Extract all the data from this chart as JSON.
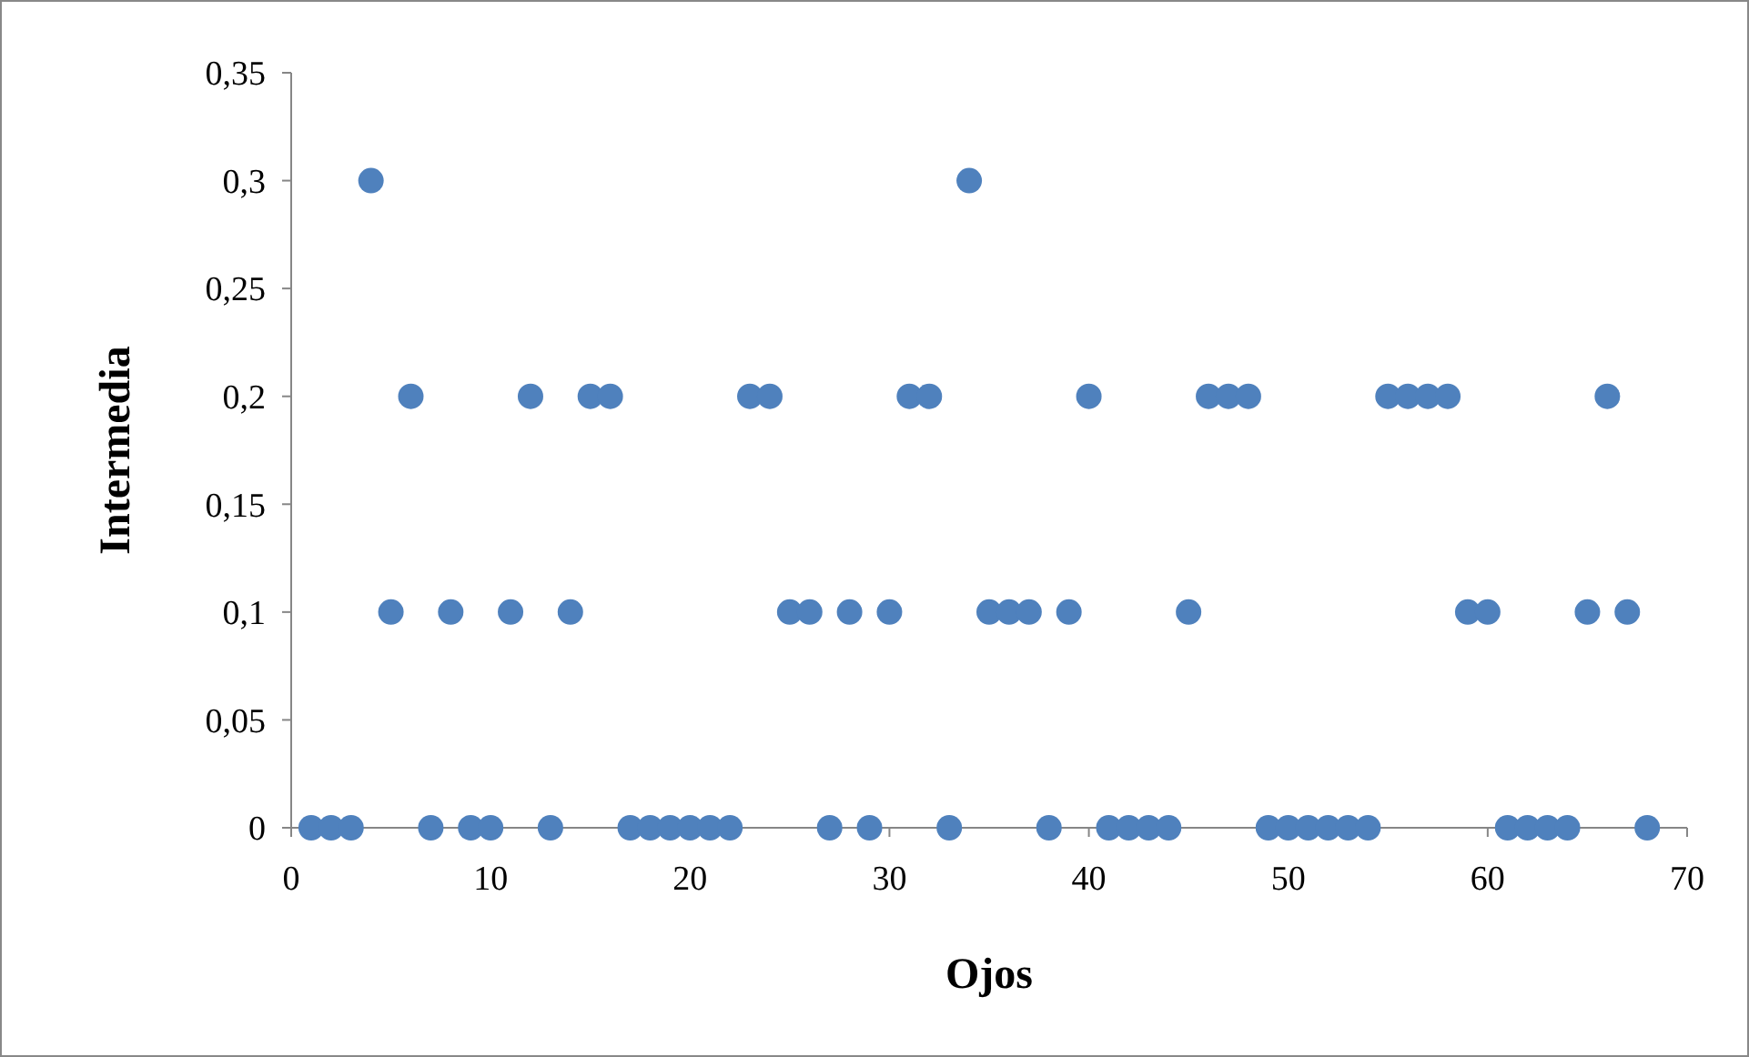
{
  "chart_data": {
    "type": "scatter",
    "xlabel": "Ojos",
    "ylabel": "Intermedia",
    "marker": "circle",
    "x": [
      1,
      2,
      3,
      4,
      5,
      6,
      7,
      8,
      9,
      10,
      11,
      12,
      13,
      14,
      15,
      16,
      17,
      18,
      19,
      20,
      21,
      22,
      23,
      24,
      25,
      26,
      27,
      28,
      29,
      30,
      31,
      32,
      33,
      34,
      35,
      36,
      37,
      38,
      39,
      40,
      41,
      42,
      43,
      44,
      45,
      46,
      47,
      48,
      49,
      50,
      51,
      52,
      53,
      54,
      55,
      56,
      57,
      58,
      59,
      60,
      61,
      62,
      63,
      64,
      65,
      66,
      67,
      68
    ],
    "series": [
      {
        "color": "#4f81bd",
        "values": [
          0,
          0,
          0,
          0.3,
          0.1,
          0.2,
          0,
          0.1,
          0,
          0,
          0.1,
          0.2,
          0,
          0.1,
          0.2,
          0.2,
          0,
          0,
          0,
          0,
          0,
          0,
          0.2,
          0.2,
          0.1,
          0.1,
          0,
          0.1,
          0,
          0.1,
          0.2,
          0.2,
          0,
          0.3,
          0.1,
          0.1,
          0.1,
          0,
          0.1,
          0.2,
          0,
          0,
          0,
          0,
          0.1,
          0.2,
          0.2,
          0.2,
          0,
          0,
          0,
          0,
          0,
          0,
          0.2,
          0.2,
          0.2,
          0.2,
          0.1,
          0.1,
          0,
          0,
          0,
          0,
          0.1,
          0.2,
          0.1,
          0
        ]
      }
    ],
    "xlim": [
      0,
      70
    ],
    "xticks": [
      0,
      10,
      20,
      30,
      40,
      50,
      60,
      70
    ],
    "ylim": [
      0,
      0.35
    ],
    "yticks": [
      0,
      {
        "value": 0.05,
        "label": "0,05"
      },
      {
        "value": 0.1,
        "label": "0,1"
      },
      {
        "value": 0.15,
        "label": "0,15"
      },
      {
        "value": 0.2,
        "label": "0,2"
      },
      {
        "value": 0.25,
        "label": "0,25"
      },
      {
        "value": 0.3,
        "label": "0,3"
      },
      {
        "value": 0.35,
        "label": "0,35"
      }
    ]
  }
}
